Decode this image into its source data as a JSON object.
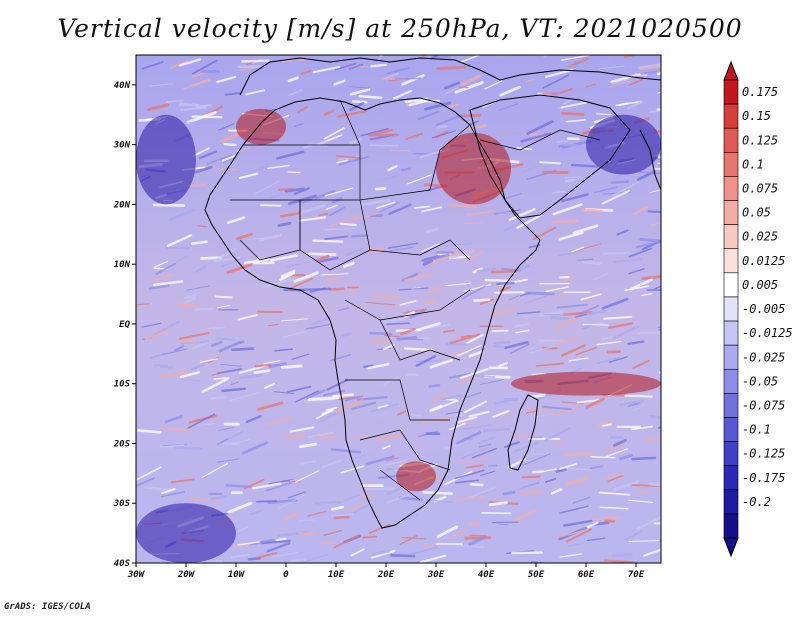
{
  "title": "Vertical velocity [m/s] at 250hPa, VT: 2021020500",
  "credit": "GrADS: IGES/COLA",
  "colors": {
    "background": "#ffffff",
    "land_outline": "#000000",
    "red_strong": "#b3171d",
    "blue_strong": "#2a1aa6"
  },
  "chart_data": {
    "type": "heatmap",
    "title": "Vertical velocity [m/s] at 250hPa, VT: 2021020500",
    "variable": "Vertical velocity",
    "units": "m/s",
    "level": "250hPa",
    "valid_time": "2021020500",
    "x_range": [
      -30,
      75
    ],
    "y_range": [
      -40,
      45
    ],
    "x_ticks": [
      {
        "value": -30,
        "label": "30W"
      },
      {
        "value": -20,
        "label": "20W"
      },
      {
        "value": -10,
        "label": "10W"
      },
      {
        "value": 0,
        "label": "0"
      },
      {
        "value": 10,
        "label": "10E"
      },
      {
        "value": 20,
        "label": "20E"
      },
      {
        "value": 30,
        "label": "30E"
      },
      {
        "value": 40,
        "label": "40E"
      },
      {
        "value": 50,
        "label": "50E"
      },
      {
        "value": 60,
        "label": "60E"
      },
      {
        "value": 70,
        "label": "70E"
      }
    ],
    "y_ticks": [
      {
        "value": 40,
        "label": "40N"
      },
      {
        "value": 30,
        "label": "30N"
      },
      {
        "value": 20,
        "label": "20N"
      },
      {
        "value": 10,
        "label": "10N"
      },
      {
        "value": 0,
        "label": "EQ"
      },
      {
        "value": -10,
        "label": "10S"
      },
      {
        "value": -20,
        "label": "20S"
      },
      {
        "value": -30,
        "label": "30S"
      },
      {
        "value": -40,
        "label": "40S"
      }
    ],
    "colorbar": {
      "labels": [
        "0.175",
        "0.15",
        "0.125",
        "0.1",
        "0.075",
        "0.05",
        "0.025",
        "0.0125",
        "0.005",
        "-0.005",
        "-0.0125",
        "-0.025",
        "-0.05",
        "-0.075",
        "-0.1",
        "-0.125",
        "-0.175",
        "-0.2"
      ],
      "colors": [
        "#c0181c",
        "#d63e3a",
        "#e05a55",
        "#e8766f",
        "#ef928a",
        "#f3ada6",
        "#f8c8c3",
        "#fbe0dc",
        "#ffffff",
        "#e2e2fa",
        "#c6c6f4",
        "#aaaaef",
        "#8e8ee8",
        "#7272df",
        "#5858d6",
        "#4040c8",
        "#2a28b8",
        "#1f1aa2",
        "#15108a"
      ],
      "extend": "both"
    },
    "features": [
      {
        "name": "strong ascent band",
        "sign": "positive",
        "lon": [
          45,
          75
        ],
        "lat": [
          -12,
          -8
        ]
      },
      {
        "name": "red Red-Sea / Arabia region",
        "sign": "positive",
        "lon": [
          30,
          45
        ],
        "lat": [
          20,
          32
        ]
      },
      {
        "name": "red streak North Africa",
        "sign": "positive",
        "lon": [
          -10,
          0
        ],
        "lat": [
          30,
          36
        ]
      },
      {
        "name": "red South Africa",
        "sign": "positive",
        "lon": [
          22,
          30
        ],
        "lat": [
          -28,
          -23
        ]
      },
      {
        "name": "blue NE Atlantic",
        "sign": "negative",
        "lon": [
          -30,
          -18
        ],
        "lat": [
          20,
          35
        ]
      },
      {
        "name": "blue Indian Ocean north",
        "sign": "negative",
        "lon": [
          60,
          75
        ],
        "lat": [
          25,
          35
        ]
      },
      {
        "name": "blue SW Atlantic",
        "sign": "negative",
        "lon": [
          -30,
          -10
        ],
        "lat": [
          -40,
          -30
        ]
      }
    ]
  }
}
